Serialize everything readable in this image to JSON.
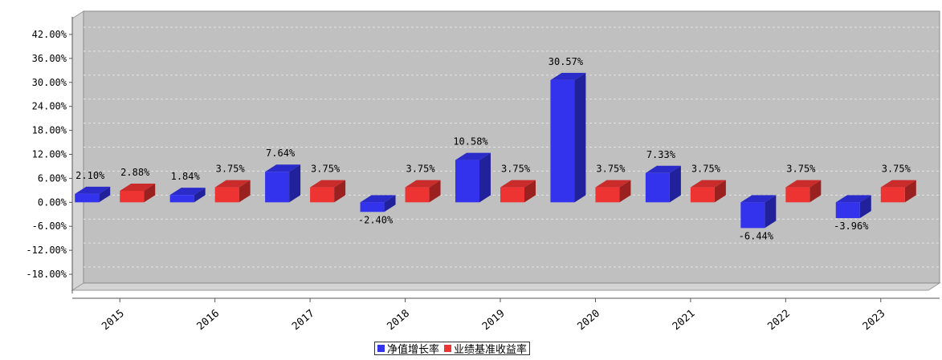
{
  "chart_data": {
    "type": "bar",
    "categories": [
      "2015",
      "2016",
      "2017",
      "2018",
      "2019",
      "2020",
      "2021",
      "2022",
      "2023"
    ],
    "series": [
      {
        "name": "净值增长率",
        "color": "#3333ee",
        "values": [
          2.1,
          1.84,
          7.64,
          -2.4,
          10.58,
          30.57,
          7.33,
          -6.44,
          -3.96
        ],
        "labels": [
          "2.10%",
          "1.84%",
          "7.64%",
          "-2.40%",
          "10.58%",
          "30.57%",
          "7.33%",
          "-6.44%",
          "-3.96%"
        ]
      },
      {
        "name": "业绩基准收益率",
        "color": "#ee3333",
        "values": [
          2.88,
          3.75,
          3.75,
          3.75,
          3.75,
          3.75,
          3.75,
          3.75,
          3.75
        ],
        "labels": [
          "2.88%",
          "3.75%",
          "3.75%",
          "3.75%",
          "3.75%",
          "3.75%",
          "3.75%",
          "3.75%",
          "3.75%"
        ]
      }
    ],
    "yticks": [
      42,
      36,
      30,
      24,
      18,
      12,
      6,
      0,
      -6,
      -12,
      -18
    ],
    "ytick_labels": [
      "42.00%",
      "36.00%",
      "30.00%",
      "24.00%",
      "18.00%",
      "12.00%",
      "6.00%",
      "0.00%",
      "-6.00%",
      "-12.00%",
      "-18.00%"
    ],
    "ylim": [
      -22,
      46
    ],
    "grid": true,
    "legend_position": "bottom-center",
    "title": "",
    "xlabel": "",
    "ylabel": ""
  }
}
